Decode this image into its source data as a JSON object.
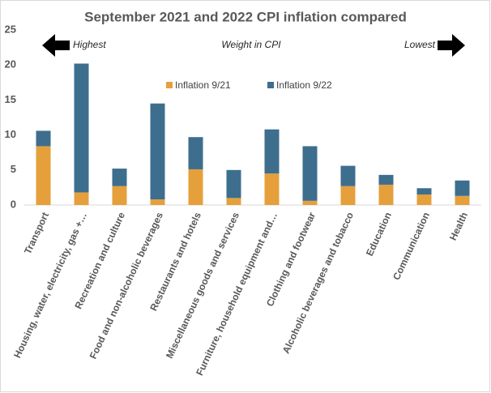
{
  "chart_data": {
    "type": "stacked_bar",
    "title": "September 2021 and 2022 CPI inflation compared",
    "annotations": [
      "Highest",
      "Weight in CPI",
      "Lowest"
    ],
    "categories": [
      "Transport",
      "Housing, water, electricity, gas +…",
      "Recreation and culture",
      "Food and non-alcoholic beverages",
      "Restaurants and hotels",
      "Miscellaneous goods and services",
      "Furniture, household equipment and…",
      "Clothing and footwear",
      "Alcoholic beverages and tobacco",
      "Education",
      "Communication",
      "Health"
    ],
    "series": [
      {
        "name": "Inflation 9/21",
        "color": "#e5a03c",
        "values": [
          8.4,
          1.8,
          2.7,
          0.8,
          5.1,
          1.0,
          4.5,
          0.6,
          2.7,
          2.9,
          1.5,
          1.3
        ]
      },
      {
        "name": "Inflation 9/22",
        "color": "#3d6e8e",
        "values": [
          2.2,
          18.4,
          2.5,
          13.7,
          4.6,
          4.0,
          6.3,
          7.8,
          2.9,
          1.4,
          0.9,
          2.2
        ]
      }
    ],
    "ylim": [
      0,
      25
    ],
    "yticks": [
      0,
      5,
      10,
      15,
      20,
      25
    ],
    "grid": false
  }
}
